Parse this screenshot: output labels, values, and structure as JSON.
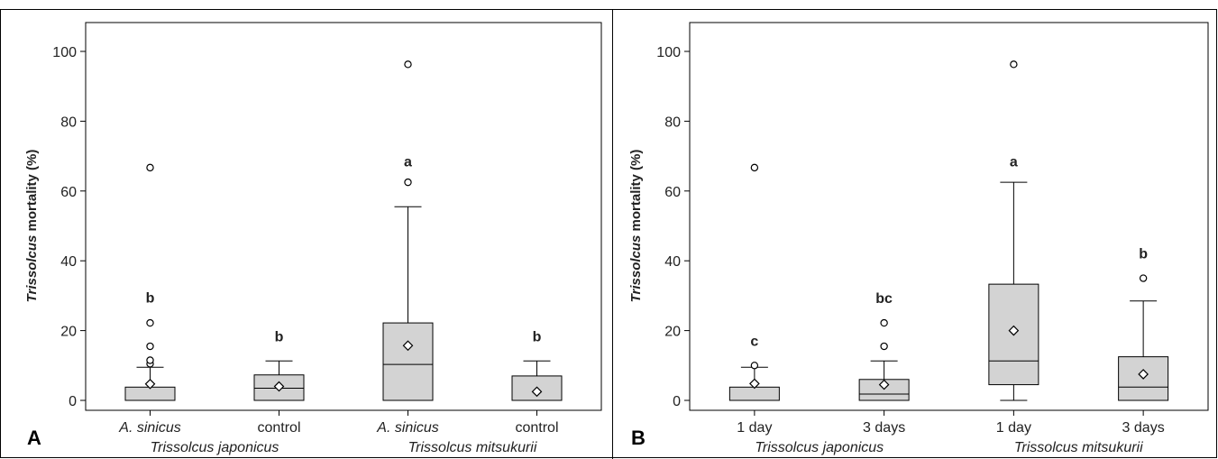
{
  "figure_colors": {
    "box_fill": "#d3d3d3",
    "line": "#000000",
    "background": "#ffffff"
  },
  "chart_data": [
    {
      "panel": "A",
      "type": "boxplot",
      "ylabel_italic": "Trissolcus",
      "ylabel_rest": " mortality (%)",
      "ylim": [
        0,
        100
      ],
      "yticks": [
        0,
        20,
        40,
        60,
        80,
        100
      ],
      "groups": [
        {
          "label": "Trissolcus japonicus",
          "categories": [
            "A. sinicus",
            "control"
          ]
        },
        {
          "label": "Trissolcus mitsukurii",
          "categories": [
            "A. sinicus",
            "control"
          ]
        }
      ],
      "category_italic": [
        true,
        false,
        true,
        false
      ],
      "boxes": [
        {
          "category": "A. sinicus",
          "group": "Trissolcus japonicus",
          "whisker_low": 0,
          "q1": 0,
          "median": 0,
          "q3": 3.8,
          "whisker_high": 9.5,
          "mean": 4.7,
          "outliers": [
            10.5,
            11.5,
            15.5,
            22.2,
            66.7
          ],
          "letter": "b"
        },
        {
          "category": "control",
          "group": "Trissolcus japonicus",
          "whisker_low": 0,
          "q1": 0,
          "median": 3.5,
          "q3": 7.3,
          "whisker_high": 11.3,
          "mean": 4.0,
          "outliers": [],
          "letter": "b"
        },
        {
          "category": "A. sinicus",
          "group": "Trissolcus mitsukurii",
          "whisker_low": 0,
          "q1": 0,
          "median": 10.3,
          "q3": 22.2,
          "whisker_high": 55.5,
          "mean": 15.7,
          "outliers": [
            62.5,
            96.3
          ],
          "letter": "a"
        },
        {
          "category": "control",
          "group": "Trissolcus mitsukurii",
          "whisker_low": 0,
          "q1": 0,
          "median": 0,
          "q3": 7.0,
          "whisker_high": 11.3,
          "mean": 2.5,
          "outliers": [],
          "letter": "b"
        }
      ]
    },
    {
      "panel": "B",
      "type": "boxplot",
      "ylabel_italic": "Trissolcus",
      "ylabel_rest": " mortality (%)",
      "ylim": [
        0,
        100
      ],
      "yticks": [
        0,
        20,
        40,
        60,
        80,
        100
      ],
      "groups": [
        {
          "label": "Trissolcus japonicus",
          "categories": [
            "1 day",
            "3 days"
          ]
        },
        {
          "label": "Trissolcus mitsukurii",
          "categories": [
            "1 day",
            "3 days"
          ]
        }
      ],
      "category_italic": [
        false,
        false,
        false,
        false
      ],
      "boxes": [
        {
          "category": "1 day",
          "group": "Trissolcus japonicus",
          "whisker_low": 0,
          "q1": 0,
          "median": 0,
          "q3": 3.8,
          "whisker_high": 9.5,
          "mean": 4.8,
          "outliers": [
            10.0,
            66.7
          ],
          "letter": "c"
        },
        {
          "category": "3 days",
          "group": "Trissolcus japonicus",
          "whisker_low": 0,
          "q1": 0,
          "median": 1.8,
          "q3": 6.0,
          "whisker_high": 11.3,
          "mean": 4.5,
          "outliers": [
            15.5,
            22.2
          ],
          "letter": "bc"
        },
        {
          "category": "1 day",
          "group": "Trissolcus mitsukurii",
          "whisker_low": 0,
          "q1": 4.5,
          "median": 11.3,
          "q3": 33.3,
          "whisker_high": 62.5,
          "mean": 20.0,
          "outliers": [
            96.3
          ],
          "letter": "a"
        },
        {
          "category": "3 days",
          "group": "Trissolcus mitsukurii",
          "whisker_low": 0,
          "q1": 0,
          "median": 3.8,
          "q3": 12.5,
          "whisker_high": 28.5,
          "mean": 7.5,
          "outliers": [
            35.0
          ],
          "letter": "b"
        }
      ]
    }
  ]
}
